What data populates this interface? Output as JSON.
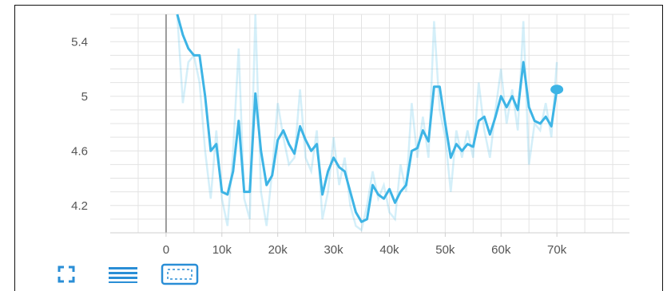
{
  "chart_data": {
    "type": "line",
    "x_ticks": [
      "0",
      "10k",
      "20k",
      "30k",
      "40k",
      "50k",
      "60k",
      "70k"
    ],
    "y_ticks": [
      "4.2",
      "4.6",
      "5",
      "5.4"
    ],
    "xlim": [
      -10000,
      83000
    ],
    "ylim": [
      4.0,
      5.6
    ],
    "grid": true,
    "colors": {
      "smoothed": "#3db4e5",
      "raw": "#3db4e5",
      "grid": "#e3e3e3",
      "axis": "#999999"
    },
    "series": [
      {
        "x": [
          2000,
          3000,
          4000,
          5000,
          6000,
          7000,
          8000,
          9000,
          10000,
          11000,
          12000,
          13000,
          14000,
          15000,
          16000,
          17000,
          18000,
          19000,
          20000,
          21000,
          22000,
          23000,
          24000,
          25000,
          26000,
          27000,
          28000,
          29000,
          30000,
          31000,
          32000,
          33000,
          34000,
          35000,
          36000,
          37000,
          38000,
          39000,
          40000,
          41000,
          42000,
          43000,
          44000,
          45000,
          46000,
          47000,
          48000,
          49000,
          50000,
          51000,
          52000,
          53000,
          54000,
          55000,
          56000,
          57000,
          58000,
          59000,
          60000,
          61000,
          62000,
          63000,
          64000,
          65000,
          66000,
          67000,
          68000,
          69000,
          70000
        ],
        "values": [
          5.6,
          5.45,
          5.35,
          5.3,
          5.3,
          5.0,
          4.6,
          4.65,
          4.3,
          4.28,
          4.45,
          4.82,
          4.3,
          4.3,
          5.02,
          4.6,
          4.35,
          4.42,
          4.68,
          4.75,
          4.65,
          4.58,
          4.78,
          4.68,
          4.6,
          4.65,
          4.28,
          4.45,
          4.55,
          4.48,
          4.45,
          4.3,
          4.15,
          4.08,
          4.1,
          4.35,
          4.28,
          4.25,
          4.32,
          4.22,
          4.3,
          4.35,
          4.6,
          4.62,
          4.75,
          4.67,
          5.07,
          5.07,
          4.8,
          4.55,
          4.65,
          4.6,
          4.65,
          4.63,
          4.82,
          4.85,
          4.72,
          4.85,
          5.0,
          4.92,
          5.0,
          4.9,
          5.25,
          4.92,
          4.82,
          4.8,
          4.85,
          4.78,
          5.05
        ]
      },
      {
        "x": [
          2000,
          3000,
          4000,
          5000,
          6000,
          7000,
          8000,
          9000,
          10000,
          11000,
          12000,
          13000,
          14000,
          15000,
          16000,
          17000,
          18000,
          19000,
          20000,
          21000,
          22000,
          23000,
          24000,
          25000,
          26000,
          27000,
          28000,
          29000,
          30000,
          31000,
          32000,
          33000,
          34000,
          35000,
          36000,
          37000,
          38000,
          39000,
          40000,
          41000,
          42000,
          43000,
          44000,
          45000,
          46000,
          47000,
          48000,
          49000,
          50000,
          51000,
          52000,
          53000,
          54000,
          55000,
          56000,
          57000,
          58000,
          59000,
          60000,
          61000,
          62000,
          63000,
          64000,
          65000,
          66000,
          67000,
          68000,
          69000,
          70000
        ],
        "values": [
          5.6,
          4.95,
          5.25,
          5.3,
          5.1,
          4.6,
          4.25,
          4.75,
          4.25,
          4.05,
          4.6,
          5.35,
          4.25,
          4.1,
          5.6,
          4.3,
          4.05,
          4.45,
          4.95,
          4.7,
          4.5,
          4.55,
          5.05,
          4.55,
          4.45,
          4.75,
          4.1,
          4.3,
          4.7,
          4.35,
          4.55,
          4.2,
          4.05,
          4.02,
          4.2,
          4.45,
          4.25,
          4.35,
          4.15,
          4.1,
          4.5,
          4.3,
          4.95,
          4.55,
          4.85,
          4.55,
          5.55,
          4.9,
          4.7,
          4.3,
          4.75,
          4.55,
          4.75,
          4.55,
          5.1,
          4.75,
          4.55,
          4.9,
          5.2,
          4.8,
          5.05,
          4.75,
          5.55,
          4.5,
          4.8,
          4.75,
          4.95,
          4.7,
          5.25
        ]
      }
    ]
  },
  "toolbar": {
    "fit_icon": "fullscreen-corners-icon",
    "lines_icon": "list-lines-icon",
    "zoom_icon": "dashed-zoom-box-icon"
  }
}
